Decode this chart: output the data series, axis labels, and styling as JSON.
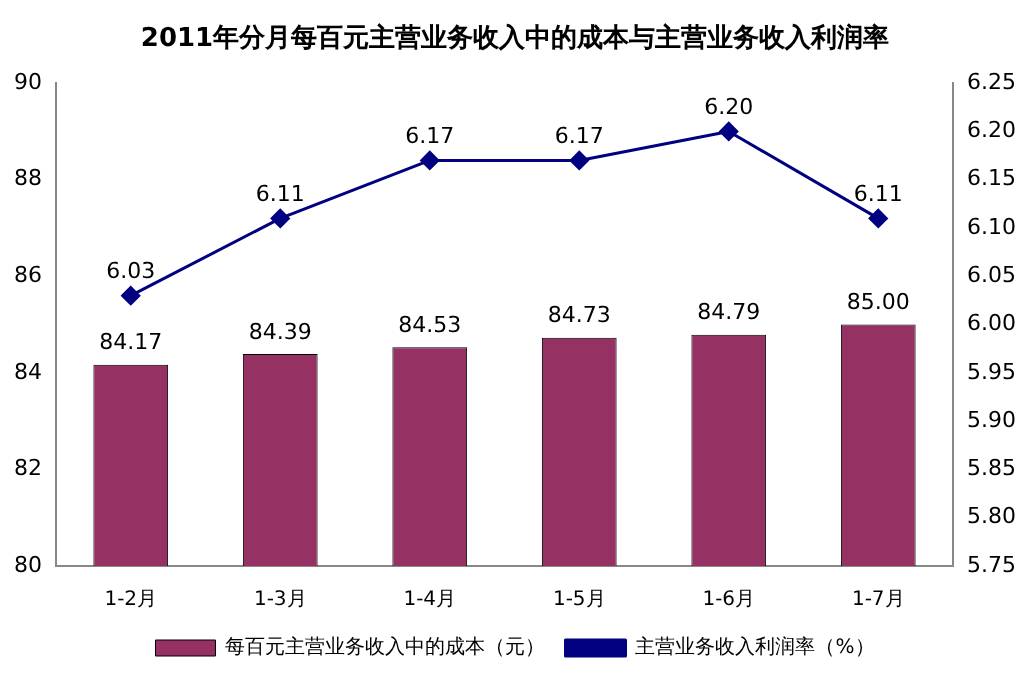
{
  "chart_data": {
    "type": "bar",
    "title": "2011年分月每百元主营业务收入中的成本与主营业务收入利润率",
    "categories": [
      "1-2月",
      "1-3月",
      "1-4月",
      "1-5月",
      "1-6月",
      "1-7月"
    ],
    "series": [
      {
        "name": "每百元主营业务收入中的成本（元）",
        "color": "#953163",
        "values": [
          84.17,
          84.39,
          84.53,
          84.73,
          84.79,
          85.0
        ],
        "value_labels": [
          "84.17",
          "84.39",
          "84.53",
          "84.73",
          "84.79",
          "85.00"
        ]
      },
      {
        "name": "主营业务收入利润率（%）",
        "type": "line",
        "axis": "y2",
        "color": "#000080",
        "marker": "diamond",
        "values": [
          6.03,
          6.11,
          6.17,
          6.17,
          6.2,
          6.11
        ],
        "value_labels": [
          "6.03",
          "6.11",
          "6.17",
          "6.17",
          "6.20",
          "6.11"
        ]
      }
    ],
    "ylim": [
      80,
      90
    ],
    "yticks": [
      80,
      82,
      84,
      86,
      88,
      90
    ],
    "y2lim": [
      5.75,
      6.25
    ],
    "y2ticks": [
      5.75,
      {
        "value": 5.8,
        "label": "5.80"
      },
      5.85,
      {
        "value": 5.9,
        "label": "5.90"
      },
      5.95,
      {
        "value": 6.0,
        "label": "6.00"
      },
      6.05,
      {
        "value": 6.1,
        "label": "6.10"
      },
      6.15,
      {
        "value": 6.2,
        "label": "6.20"
      },
      6.25
    ],
    "legend": "bottom"
  }
}
